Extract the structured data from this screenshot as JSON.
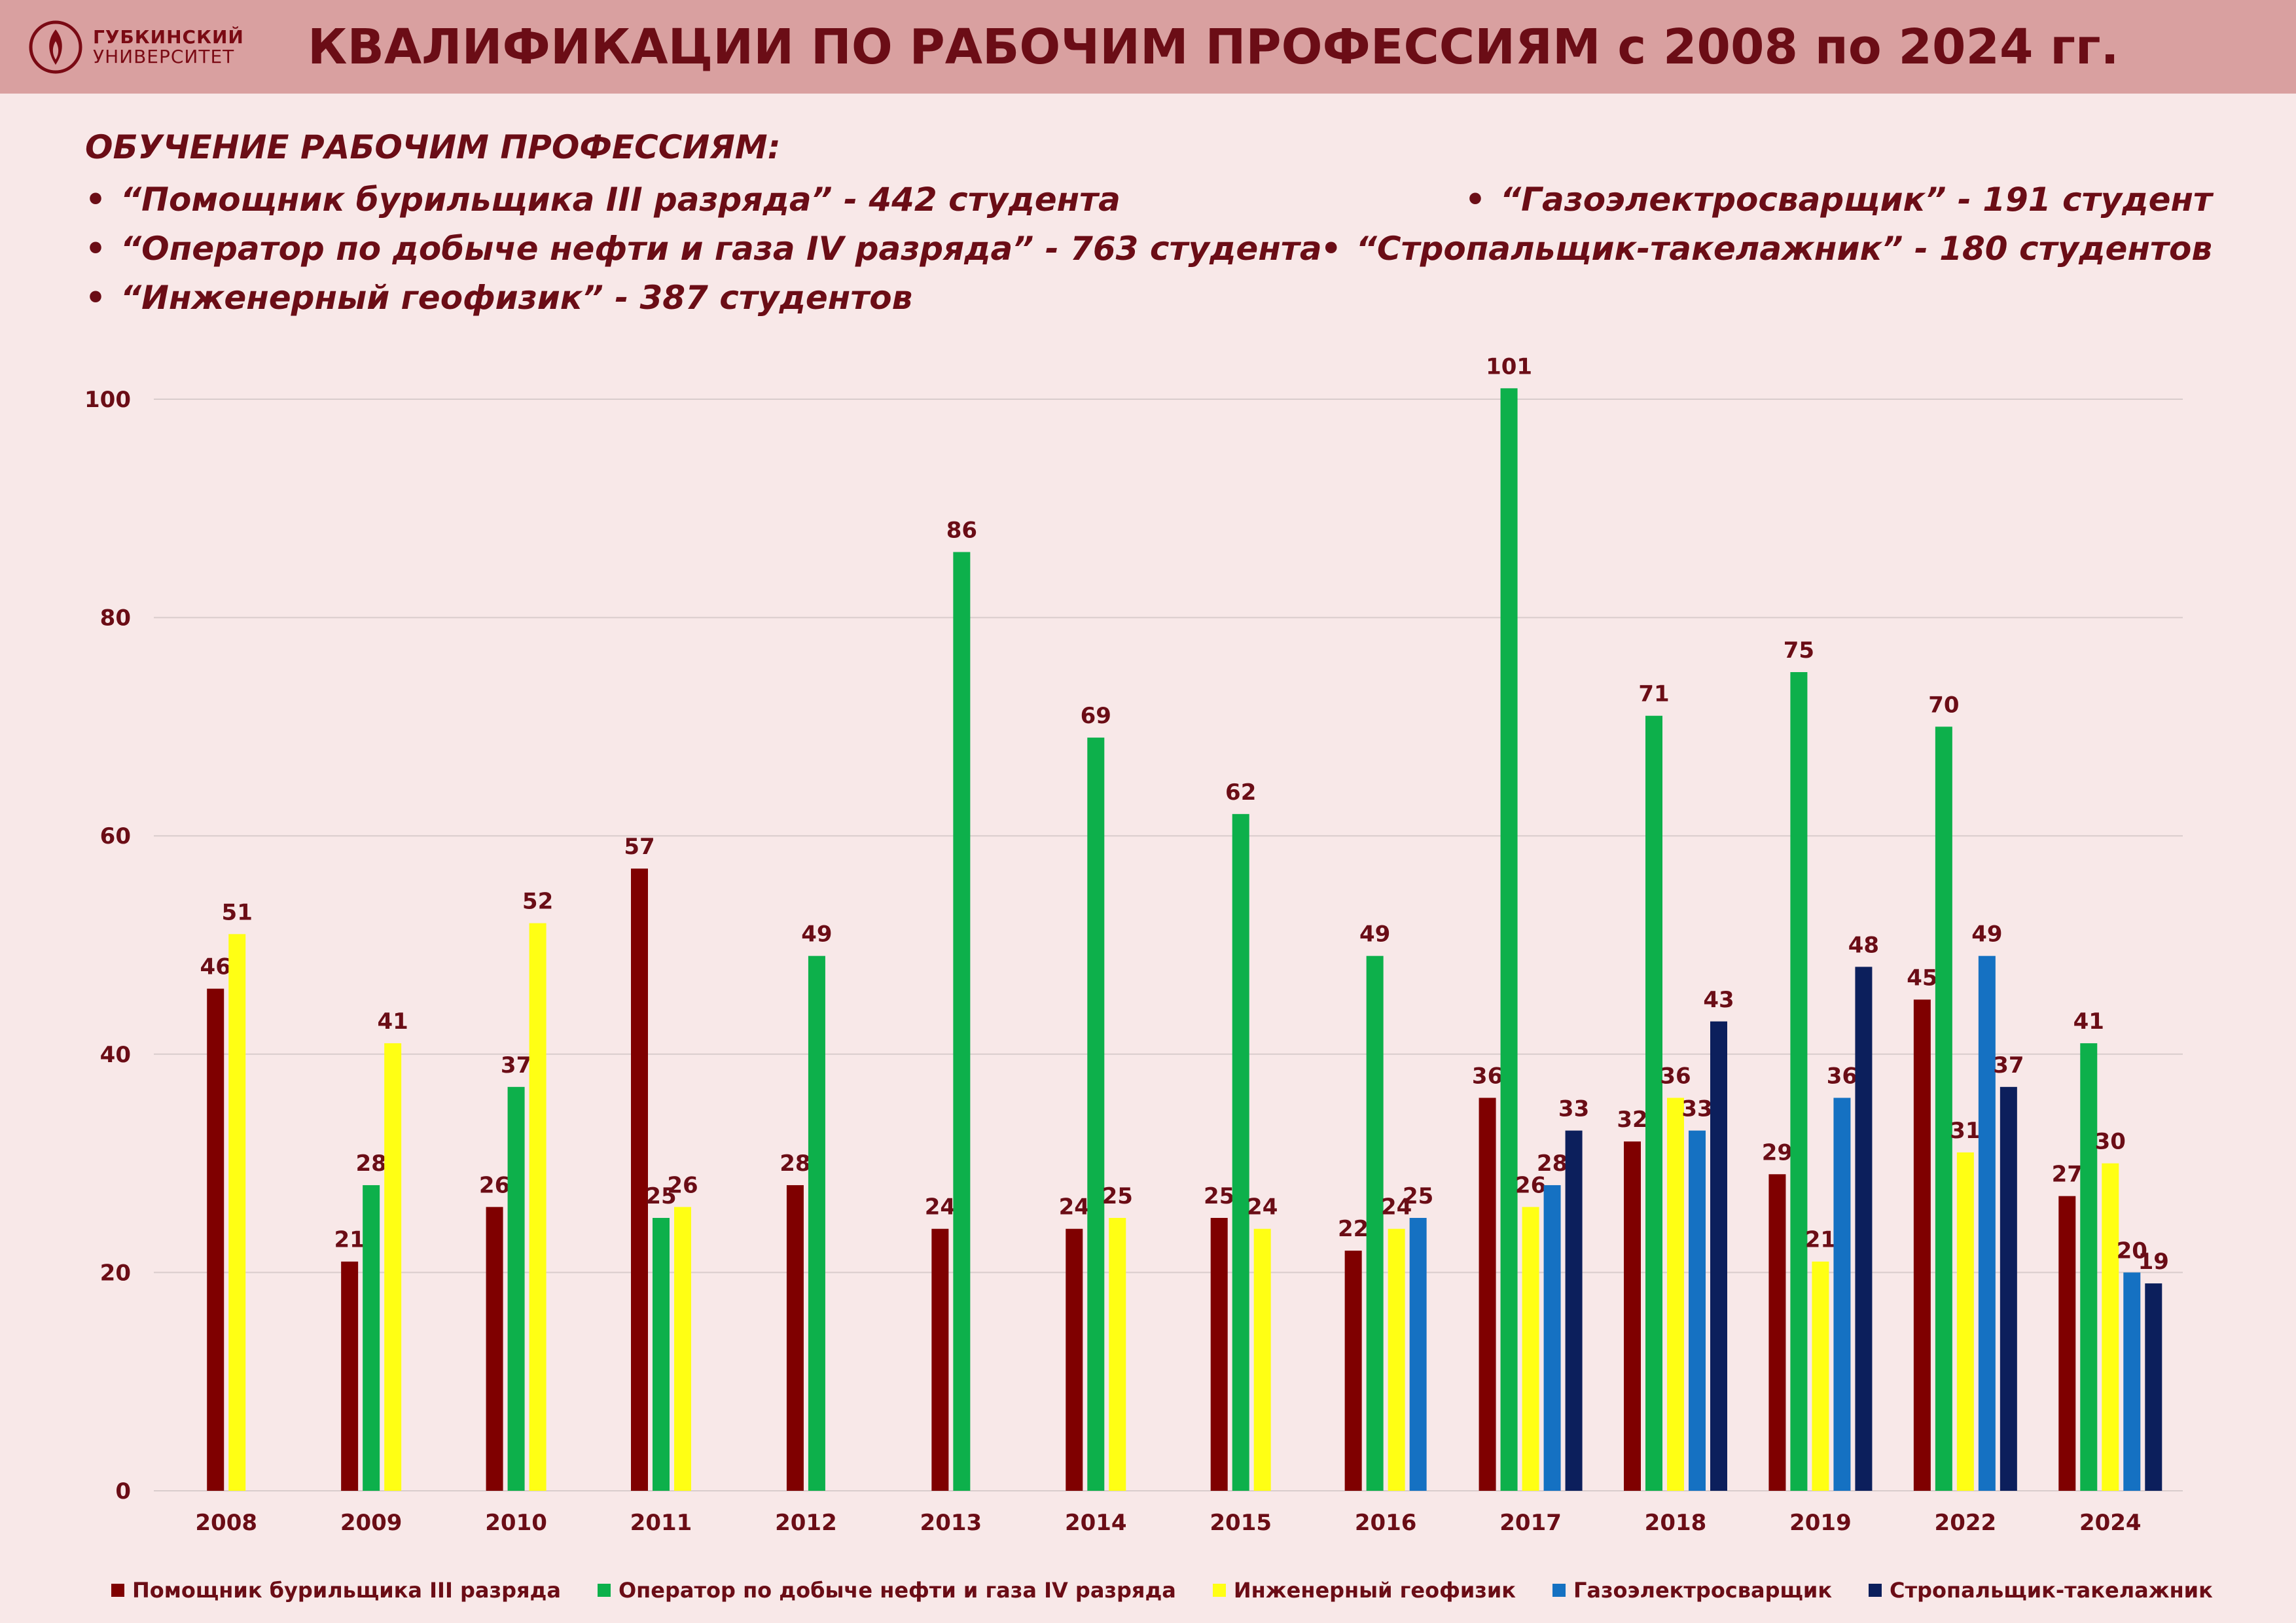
{
  "header": {
    "logo_line1": "ГУБКИНСКИЙ",
    "logo_line2": "УНИВЕРСИТЕТ",
    "title": "КВАЛИФИКАЦИИ ПО РАБОЧИМ ПРОФЕССИЯМ с 2008 по 2024 гг."
  },
  "notes": {
    "title": "ОБУЧЕНИЕ РАБОЧИМ ПРОФЕССИЯМ:",
    "bullet": "•",
    "items": [
      "“Помощник бурильщика III разряда” - 442 студента",
      "“Оператор по добыче нефти и газа IV разряда” - 763 студента",
      "“Инженерный геофизик” - 387 студентов",
      "“Газоэлектросварщик” - 191 студент",
      "“Стропальщик-такелажник” - 180 студентов"
    ]
  },
  "colors": {
    "background": "#f8e8e8",
    "header": "#d9a0a0",
    "text": "#6b0d16",
    "grid": "#d9cccc"
  },
  "chart_data": {
    "type": "bar",
    "categories": [
      "2008",
      "2009",
      "2010",
      "2011",
      "2012",
      "2013",
      "2014",
      "2015",
      "2016",
      "2017",
      "2018",
      "2019",
      "2022",
      "2024"
    ],
    "ylim": [
      0,
      100
    ],
    "yticks": [
      0,
      20,
      40,
      60,
      80,
      100
    ],
    "grid": true,
    "legend_position": "bottom",
    "series": [
      {
        "name": "Помощник бурильщика III разряда",
        "color": "#7f0000",
        "values": [
          46,
          21,
          26,
          57,
          28,
          24,
          24,
          25,
          22,
          36,
          32,
          29,
          45,
          27
        ]
      },
      {
        "name": "Оператор по добыче нефти и газа IV разряда",
        "color": "#0db04b",
        "values": [
          null,
          28,
          37,
          25,
          49,
          86,
          69,
          62,
          49,
          101,
          71,
          75,
          70,
          41
        ]
      },
      {
        "name": "Инженерный геофизик",
        "color": "#ffff14",
        "values": [
          51,
          41,
          52,
          26,
          null,
          null,
          25,
          24,
          24,
          26,
          36,
          21,
          31,
          30
        ]
      },
      {
        "name": "Газоэлектросварщик",
        "color": "#1571c2",
        "values": [
          null,
          null,
          null,
          null,
          null,
          null,
          null,
          null,
          25,
          28,
          33,
          36,
          49,
          20
        ]
      },
      {
        "name": "Стропальщик-такелажник",
        "color": "#0c1f5c",
        "values": [
          null,
          null,
          null,
          null,
          null,
          null,
          null,
          null,
          null,
          33,
          43,
          48,
          37,
          19
        ]
      }
    ]
  }
}
